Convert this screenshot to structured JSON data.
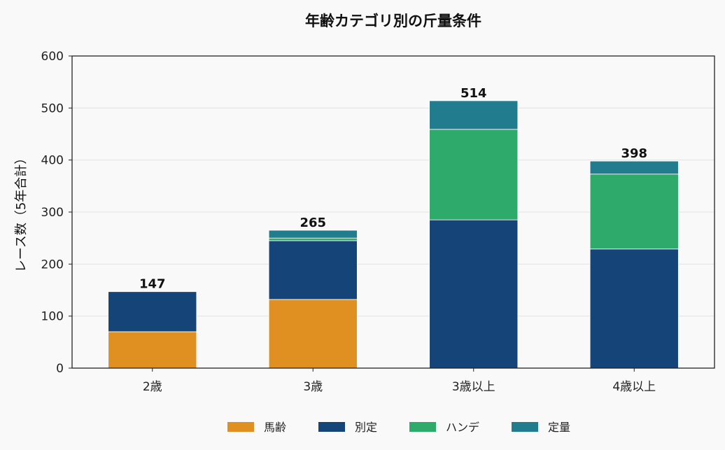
{
  "chart_data": {
    "type": "bar",
    "stacked": true,
    "title": "年齢カテゴリ別の斤量条件",
    "xlabel": "",
    "ylabel": "レース数（5年合計）",
    "ylim": [
      0,
      600
    ],
    "yticks": [
      0,
      100,
      200,
      300,
      400,
      500,
      600
    ],
    "grid": true,
    "legend_position": "bottom",
    "categories": [
      "2歳",
      "3歳",
      "3歳以上",
      "4歳以上"
    ],
    "series": [
      {
        "name": "馬齢",
        "color": "#e09020",
        "values": [
          70,
          132,
          0,
          0
        ]
      },
      {
        "name": "別定",
        "color": "#154578",
        "values": [
          77,
          113,
          285,
          229
        ]
      },
      {
        "name": "ハンデ",
        "color": "#2eaa6a",
        "values": [
          0,
          5,
          174,
          144
        ]
      },
      {
        "name": "定量",
        "color": "#217c8d",
        "values": [
          0,
          15,
          55,
          25
        ]
      }
    ],
    "totals": [
      147,
      265,
      514,
      398
    ]
  }
}
